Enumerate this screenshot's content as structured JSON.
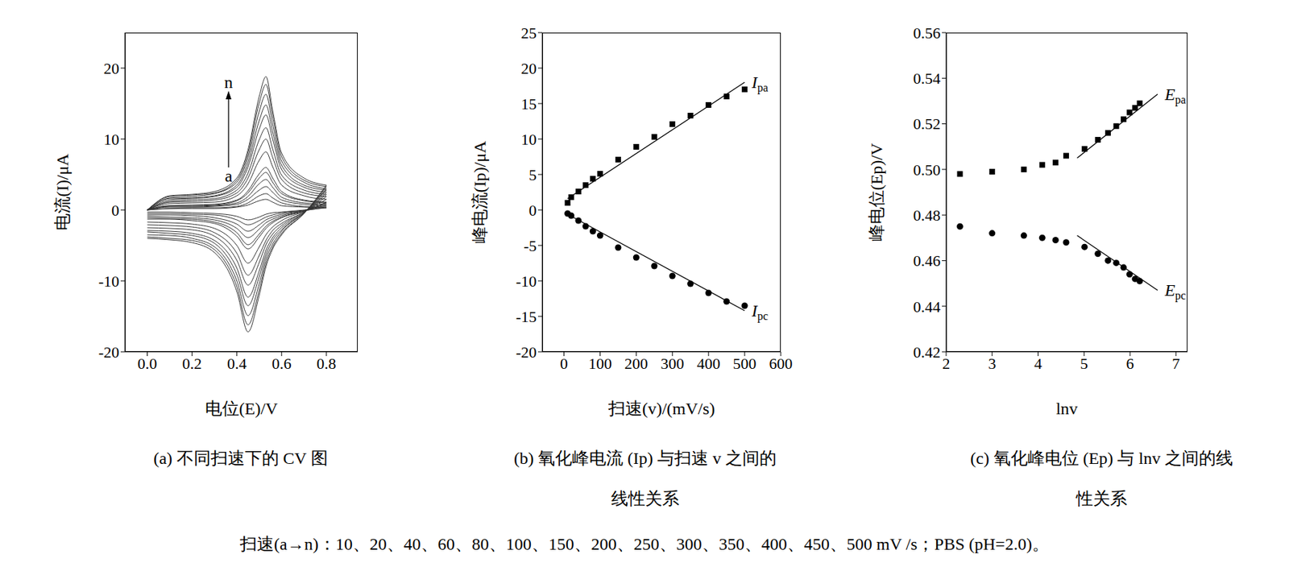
{
  "chart_data": [
    {
      "type": "line",
      "title": [
        "(a) 不同扫速下的 CV 图"
      ],
      "x_label": "电位(E)/V",
      "y_label": "电流(I)/μA",
      "xlim": [
        -0.1,
        0.94
      ],
      "ylim": [
        -20,
        25
      ],
      "xticks": [
        {
          "value": 0,
          "label": "0.0"
        },
        0.2,
        0.4,
        0.6,
        0.8
      ],
      "yticks": [
        -20,
        -10,
        0,
        10,
        20
      ],
      "annotations": [
        "n",
        "a"
      ],
      "x": [
        0,
        0.1,
        0.2,
        0.3,
        0.4,
        0.45,
        0.5,
        0.53,
        0.56,
        0.6,
        0.7,
        0.8
      ],
      "series": [
        {
          "color": "#333333",
          "forward": [
            0,
            0.2,
            0.2,
            0.2,
            0.4,
            0.7,
            1.3,
            1.5,
            1.1,
            0.6,
            0.4,
            0.3
          ],
          "reverse": [
            -0.3,
            -0.3,
            -0.4,
            -0.5,
            -0.9,
            -1.4,
            -1.0,
            -0.6,
            -0.4,
            -0.3,
            0,
            0.3
          ]
        },
        {
          "color": "#333333",
          "forward": [
            0,
            0.2,
            0.3,
            0.3,
            0.5,
            1.0,
            2.0,
            2.3,
            1.7,
            1.0,
            0.5,
            0.4
          ],
          "reverse": [
            -0.5,
            -0.5,
            -0.6,
            -0.7,
            -1.4,
            -2.1,
            -1.5,
            -1.0,
            -0.7,
            -0.4,
            -0.1,
            0.4
          ]
        },
        {
          "color": "#333333",
          "forward": [
            0,
            0.4,
            0.4,
            0.5,
            0.8,
            1.5,
            2.8,
            3.3,
            2.5,
            1.4,
            0.8,
            0.6
          ],
          "reverse": [
            -0.7,
            -0.7,
            -0.8,
            -1.1,
            -2.0,
            -3.0,
            -2.1,
            -1.4,
            -1.0,
            -0.6,
            -0.1,
            0.6
          ]
        },
        {
          "color": "#333333",
          "forward": [
            0,
            0.5,
            0.5,
            0.6,
            1.0,
            1.9,
            3.7,
            4.3,
            3.2,
            1.8,
            1.0,
            0.8
          ],
          "reverse": [
            -0.9,
            -1.0,
            -1.1,
            -1.4,
            -2.6,
            -3.9,
            -2.7,
            -1.8,
            -1.3,
            -0.8,
            -0.1,
            0.8
          ]
        },
        {
          "color": "#333333",
          "forward": [
            0,
            0.6,
            0.6,
            0.7,
            1.3,
            2.4,
            4.5,
            5.3,
            3.9,
            2.3,
            1.3,
            1.0
          ],
          "reverse": [
            -1.1,
            -1.2,
            -1.3,
            -1.7,
            -3.2,
            -4.9,
            -3.4,
            -2.3,
            -1.6,
            -1.0,
            -0.1,
            1.0
          ]
        },
        {
          "color": "#333333",
          "forward": [
            0,
            0.6,
            0.7,
            0.8,
            1.4,
            2.7,
            5.1,
            6.0,
            4.5,
            2.6,
            1.4,
            1.1
          ],
          "reverse": [
            -1.3,
            -1.3,
            -1.5,
            -1.9,
            -3.7,
            -5.5,
            -3.8,
            -2.6,
            -1.8,
            -1.1,
            -0.2,
            1.1
          ]
        },
        {
          "color": "#333333",
          "forward": [
            0,
            0.9,
            1.0,
            1.1,
            2.0,
            3.7,
            7.0,
            8.2,
            6.1,
            3.5,
            2.0,
            1.5
          ],
          "reverse": [
            -1.7,
            -1.8,
            -2.0,
            -2.6,
            -5.0,
            -7.5,
            -5.2,
            -3.5,
            -2.4,
            -1.5,
            -0.2,
            1.5
          ]
        },
        {
          "color": "#333333",
          "forward": [
            0,
            1.1,
            1.2,
            1.4,
            2.4,
            4.5,
            8.5,
            10.0,
            7.4,
            4.3,
            2.4,
            1.9
          ],
          "reverse": [
            -2.1,
            -2.2,
            -2.4,
            -3.2,
            -6.1,
            -9.2,
            -6.4,
            -4.3,
            -2.9,
            -1.9,
            -0.3,
            1.9
          ]
        },
        {
          "color": "#333333",
          "forward": [
            0,
            1.2,
            1.4,
            1.6,
            2.8,
            5.2,
            9.9,
            11.6,
            8.6,
            4.9,
            2.8,
            2.2
          ],
          "reverse": [
            -2.5,
            -2.6,
            -2.8,
            -3.7,
            -7.1,
            -10.6,
            -7.4,
            -4.9,
            -3.4,
            -2.2,
            -0.3,
            2.2
          ]
        },
        {
          "color": "#333333",
          "forward": [
            0,
            1.4,
            1.6,
            1.9,
            3.2,
            6.1,
            11.4,
            13.4,
            10.0,
            5.7,
            3.2,
            2.5
          ],
          "reverse": [
            -2.9,
            -3.0,
            -3.3,
            -4.3,
            -8.2,
            -12.3,
            -8.6,
            -5.7,
            -3.9,
            -2.5,
            -0.4,
            2.5
          ]
        },
        {
          "color": "#333333",
          "forward": [
            0,
            1.6,
            1.7,
            2.0,
            3.5,
            6.7,
            12.6,
            14.8,
            11.0,
            6.3,
            3.5,
            2.8
          ],
          "reverse": [
            -3.1,
            -3.3,
            -3.6,
            -4.7,
            -9.1,
            -13.5,
            -9.4,
            -6.3,
            -4.3,
            -2.8,
            -0.4,
            2.8
          ]
        },
        {
          "color": "#333333",
          "forward": [
            0,
            1.7,
            1.9,
            2.3,
            3.9,
            7.4,
            13.9,
            16.3,
            12.1,
            6.9,
            3.9,
            3.0
          ],
          "reverse": [
            -3.5,
            -3.6,
            -4.0,
            -5.2,
            -10.0,
            -14.9,
            -10.4,
            -6.9,
            -4.8,
            -3.0,
            -0.4,
            3.0
          ]
        },
        {
          "color": "#333333",
          "forward": [
            0,
            1.9,
            2.1,
            2.4,
            4.2,
            8.0,
            15.1,
            17.7,
            13.2,
            7.5,
            4.2,
            3.3
          ],
          "reverse": [
            -3.8,
            -4.0,
            -4.3,
            -5.6,
            -10.8,
            -16.2,
            -11.3,
            -7.5,
            -5.2,
            -3.3,
            -0.5,
            3.3
          ]
        },
        {
          "color": "#333333",
          "forward": [
            0,
            2.0,
            2.2,
            2.6,
            4.5,
            8.5,
            16.0,
            18.8,
            14.0,
            8.0,
            4.5,
            3.5
          ],
          "reverse": [
            -4.0,
            -4.2,
            -4.6,
            -6.0,
            -11.5,
            -17.2,
            -12.0,
            -8.0,
            -5.5,
            -3.5,
            -0.5,
            3.5
          ]
        }
      ]
    },
    {
      "type": "scatter",
      "title": [
        "(b) 氧化峰电流 (Ip) 与扫速 v 之间的",
        "线性关系"
      ],
      "x_label": "扫速(v)/(mV/s)",
      "y_label": "峰电流(Ip)/μA",
      "xlim": [
        -60,
        600
      ],
      "ylim": [
        -20,
        25
      ],
      "xticks": [
        0,
        100,
        200,
        300,
        400,
        500,
        600
      ],
      "yticks": [
        -20,
        -15,
        -10,
        -5,
        0,
        5,
        10,
        15,
        20,
        25
      ],
      "x": [
        10,
        20,
        40,
        60,
        80,
        100,
        150,
        200,
        250,
        300,
        350,
        400,
        450,
        500
      ],
      "series": [
        {
          "name": "Ipa",
          "marker": "square",
          "color": "#000000",
          "values": [
            1.0,
            1.8,
            2.6,
            3.5,
            4.4,
            5.1,
            7.1,
            8.9,
            10.3,
            12.1,
            13.3,
            14.8,
            16.0,
            17.0
          ],
          "fit": {
            "x": [
              10,
              500
            ],
            "values": [
              1.6,
              18.0
            ]
          }
        },
        {
          "name": "Ipc",
          "marker": "circle",
          "color": "#000000",
          "values": [
            -0.5,
            -0.8,
            -1.5,
            -2.3,
            -3.0,
            -3.6,
            -5.3,
            -6.7,
            -7.9,
            -9.3,
            -10.4,
            -11.7,
            -12.9,
            -13.5
          ],
          "fit": {
            "x": [
              10,
              500
            ],
            "values": [
              -0.6,
              -14.2
            ]
          }
        }
      ]
    },
    {
      "type": "scatter",
      "title": [
        "(c) 氧化峰电位 (Ep) 与 lnv 之间的线",
        "性关系"
      ],
      "x_label": "lnv",
      "y_label": "峰电位(Ep)/V",
      "xlim": [
        2,
        7.25
      ],
      "ylim": [
        0.42,
        0.56
      ],
      "xticks": [
        2,
        3,
        4,
        5,
        6,
        7
      ],
      "yticks": [
        0.42,
        0.44,
        0.46,
        0.48,
        {
          "value": 0.5,
          "label": "0.50"
        },
        0.52,
        0.54,
        0.56
      ],
      "x": [
        2.3,
        3.0,
        3.69,
        4.09,
        4.38,
        4.61,
        5.01,
        5.3,
        5.52,
        5.7,
        5.86,
        5.99,
        6.11,
        6.21
      ],
      "series": [
        {
          "name": "Epa",
          "marker": "square",
          "color": "#000000",
          "values": [
            0.498,
            0.499,
            0.5,
            0.502,
            0.503,
            0.506,
            0.509,
            0.513,
            0.516,
            0.519,
            0.522,
            0.525,
            0.527,
            0.529
          ],
          "fit": {
            "x": [
              4.85,
              6.6
            ],
            "values": [
              0.505,
              0.533
            ]
          }
        },
        {
          "name": "Epc",
          "marker": "circle",
          "color": "#000000",
          "values": [
            0.475,
            0.472,
            0.471,
            0.47,
            0.469,
            0.468,
            0.466,
            0.463,
            0.46,
            0.459,
            0.457,
            0.454,
            0.452,
            0.451
          ],
          "fit": {
            "x": [
              4.85,
              6.6
            ],
            "values": [
              0.471,
              0.447
            ]
          }
        }
      ]
    }
  ],
  "footnote": "扫速(a→n)：10、20、40、60、80、100、150、200、250、300、350、400、450、500 mV /s；PBS (pH=2.0)。"
}
